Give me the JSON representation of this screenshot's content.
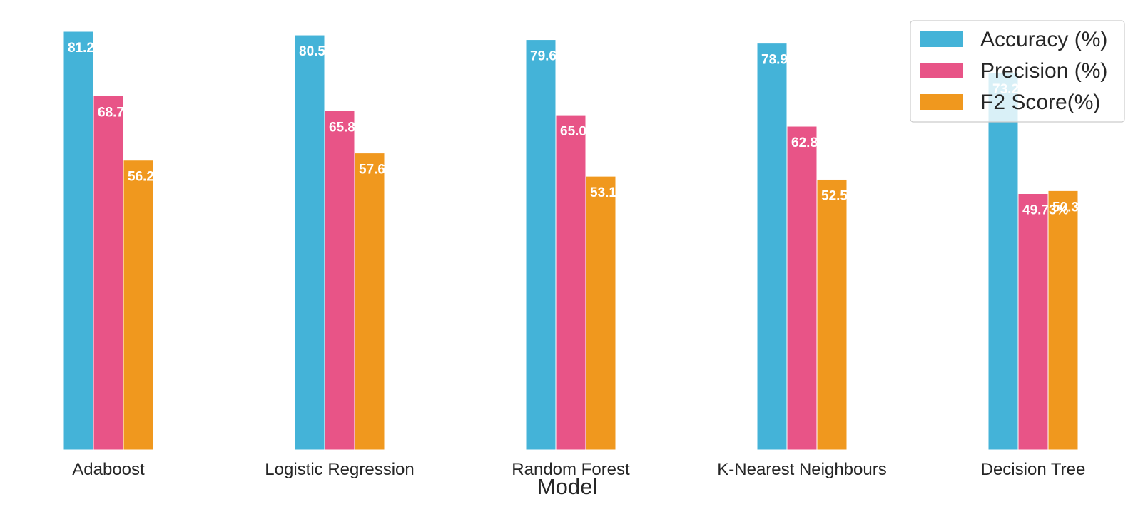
{
  "chart_data": {
    "type": "bar",
    "title": "",
    "xlabel": "Model",
    "ylabel": "",
    "categories": [
      "Adaboost",
      "Logistic Regression",
      "Random Forest",
      "K-Nearest Neighbours",
      "Decision Tree"
    ],
    "series": [
      {
        "name": "Accuracy (%)",
        "color": "#44b3d8",
        "values": [
          81.2,
          80.5,
          79.6,
          78.9,
          73.2
        ],
        "labels": [
          "81.2",
          "80.5",
          "79.6",
          "78.9",
          "73.2"
        ]
      },
      {
        "name": "Precision (%)",
        "color": "#e85487",
        "values": [
          68.7,
          65.8,
          65.0,
          62.8,
          49.73
        ],
        "labels": [
          "68.7",
          "65.8",
          "65.0",
          "62.8",
          "49.73%"
        ]
      },
      {
        "name": "F2 Score(%)",
        "color": "#f0981e",
        "values": [
          56.2,
          57.6,
          53.1,
          52.5,
          50.3
        ],
        "labels": [
          "56.2",
          "57.6",
          "53.1",
          "52.5",
          "50.3"
        ]
      }
    ],
    "ylim": [
      0,
      81.2
    ],
    "grid": false,
    "legend": "top-right"
  }
}
